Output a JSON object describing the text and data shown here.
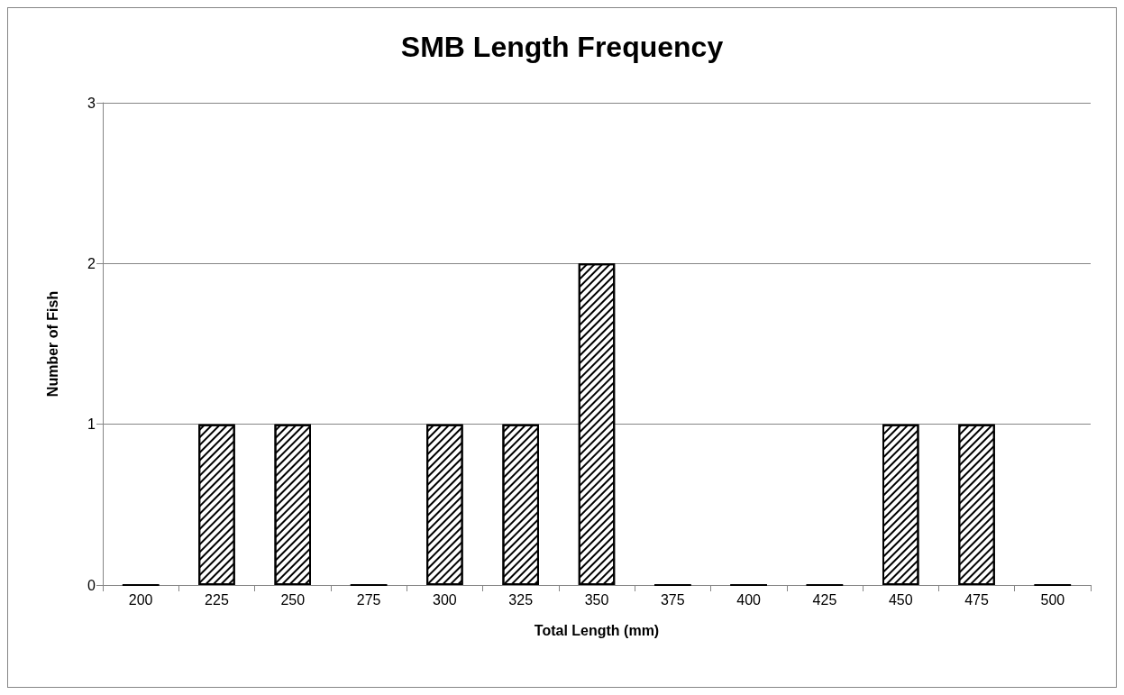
{
  "chart_data": {
    "type": "bar",
    "title": "SMB Length Frequency",
    "xlabel": "Total Length (mm)",
    "ylabel": "Number of Fish",
    "categories": [
      "200",
      "225",
      "250",
      "275",
      "300",
      "325",
      "350",
      "375",
      "400",
      "425",
      "450",
      "475",
      "500"
    ],
    "values": [
      0,
      1,
      1,
      0,
      1,
      1,
      2,
      0,
      0,
      0,
      1,
      1,
      0
    ],
    "color": "#000000",
    "ylim": [
      0,
      3
    ],
    "yticks": [
      0,
      1,
      2,
      3
    ],
    "grid": "y"
  }
}
